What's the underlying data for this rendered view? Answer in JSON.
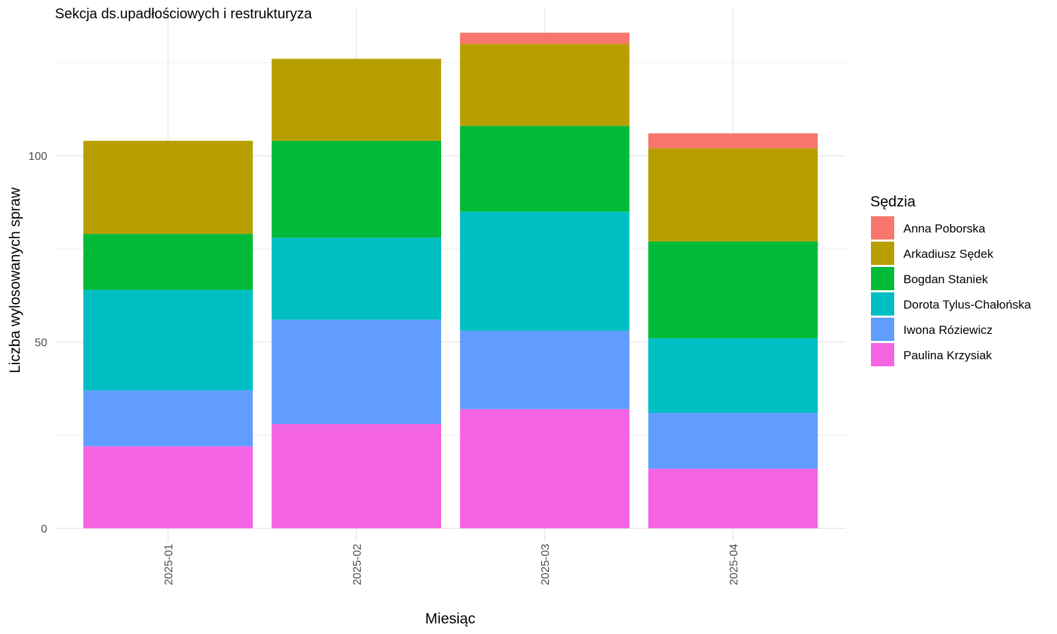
{
  "chart_data": {
    "type": "bar",
    "stacked": true,
    "title": "Sekcja ds.upadłościowych i restrukturyza",
    "xlabel": "Miesiąc",
    "ylabel": "Liczba wylosowanych spraw",
    "categories": [
      "2025-01",
      "2025-02",
      "2025-03",
      "2025-04"
    ],
    "ylim": [
      0,
      140
    ],
    "yticks": [
      0,
      50,
      100
    ],
    "grid": true,
    "legend_title": "Sędzia",
    "legend_position": "right",
    "series": [
      {
        "name": "Paulina Krzysiak",
        "color": "#F564E3",
        "values": [
          22,
          28,
          32,
          16
        ]
      },
      {
        "name": "Iwona Róziewicz",
        "color": "#619CFF",
        "values": [
          15,
          28,
          21,
          15
        ]
      },
      {
        "name": "Dorota Tylus-Chałońska",
        "color": "#00BFC4",
        "values": [
          27,
          22,
          32,
          20
        ]
      },
      {
        "name": "Bogdan Staniek",
        "color": "#00BA38",
        "values": [
          15,
          26,
          23,
          26
        ]
      },
      {
        "name": "Arkadiusz Sędek",
        "color": "#B79F00",
        "values": [
          25,
          22,
          22,
          25
        ]
      },
      {
        "name": "Anna Poborska",
        "color": "#F8766D",
        "values": [
          0,
          0,
          3,
          4
        ]
      }
    ],
    "legend_order": [
      "Anna Poborska",
      "Arkadiusz Sędek",
      "Bogdan Staniek",
      "Dorota Tylus-Chałońska",
      "Iwona Róziewicz",
      "Paulina Krzysiak"
    ]
  }
}
